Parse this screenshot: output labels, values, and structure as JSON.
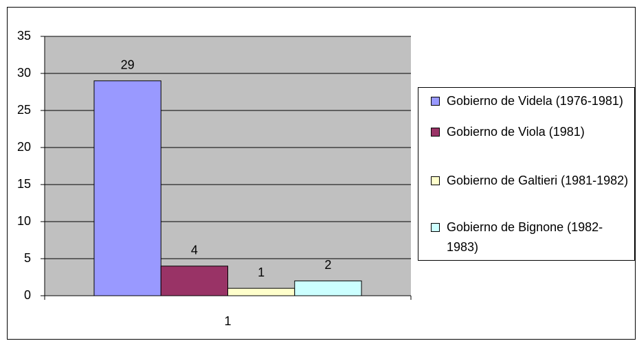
{
  "chart_data": {
    "type": "bar",
    "categories": [
      "1"
    ],
    "series": [
      {
        "name": "Gobierno de Videla (1976-1981)",
        "color": "#9999ff",
        "values": [
          29
        ]
      },
      {
        "name": "Gobierno de Viola (1981)",
        "color": "#993366",
        "values": [
          4
        ]
      },
      {
        "name": "Gobierno de Galtieri (1981-1982)",
        "color": "#ffffcc",
        "values": [
          1
        ]
      },
      {
        "name": "Gobierno de Bignone (1982-1983)",
        "color": "#ccffff",
        "values": [
          2
        ]
      }
    ],
    "ylim": [
      0,
      35
    ],
    "yticks": [
      0,
      5,
      10,
      15,
      20,
      25,
      30,
      35
    ],
    "grid": true,
    "legend": "right"
  }
}
